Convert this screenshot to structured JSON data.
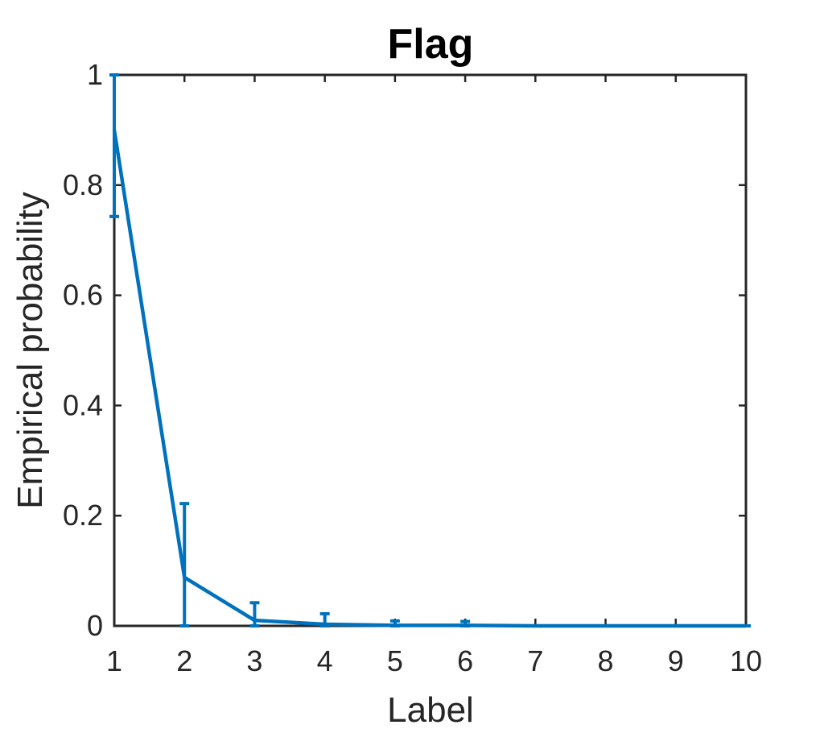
{
  "chart_data": {
    "type": "line",
    "title": "Flag",
    "xlabel": "Label",
    "ylabel": "Empirical probability",
    "xlim": [
      1,
      10
    ],
    "ylim": [
      0,
      1
    ],
    "xticks": [
      "1",
      "2",
      "3",
      "4",
      "5",
      "6",
      "7",
      "8",
      "9",
      "10"
    ],
    "yticks": [
      "0",
      "0.2",
      "0.4",
      "0.6",
      "0.8",
      "1"
    ],
    "grid": false,
    "series": [
      {
        "x": [
          1,
          2,
          3,
          4,
          5,
          6,
          7,
          8,
          9,
          10
        ],
        "y": [
          0.9,
          0.088,
          0.01,
          0.003,
          0.001,
          0.001,
          0.0,
          0.0,
          0.0,
          0.0
        ],
        "error_upper": [
          1.0,
          0.222,
          0.042,
          0.022,
          0.009,
          0.008,
          0.0,
          0.0,
          0.0,
          0.0
        ],
        "error_lower": [
          0.743,
          0.0,
          0.0,
          0.0,
          0.0,
          0.0,
          0.0,
          0.0,
          0.0,
          0.0
        ],
        "color": "#0072BD"
      }
    ],
    "axis_color": "#262626"
  }
}
